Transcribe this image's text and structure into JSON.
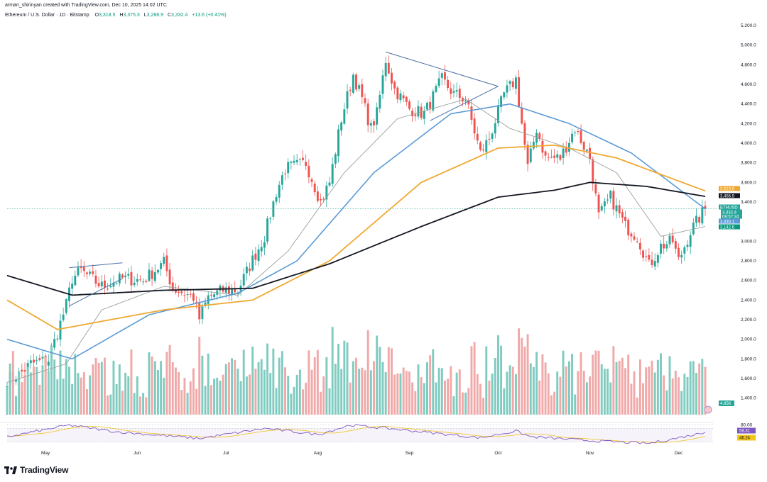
{
  "header": {
    "author": "arman_shirinyan created with TradingView.com, Dec 10, 2025 14:02 UTC",
    "symbol": "Ethereum / U.S. Dollar · 1D · Bitstamp",
    "open_label": "O",
    "open": "3,318.5",
    "high_label": "H",
    "high": "3,375.3",
    "low_label": "L",
    "low": "3,288.9",
    "close_label": "C",
    "close": "3,332.4",
    "change": "+13.6 (+0.41%)"
  },
  "footer": {
    "brand": "TradingView"
  },
  "colors": {
    "up": "#26a69a",
    "down": "#ef5350",
    "vol_up": "#7fcbc0",
    "vol_down": "#f1a8a8",
    "sma20": "#9aa19c",
    "sma50": "#5b9bd5",
    "sma100": "#f0a830",
    "sma200": "#131722",
    "rsi": "#7e57c2",
    "trendline": "#4a6fa5"
  },
  "chart_data": {
    "type": "candlestick",
    "title": "Ethereum / U.S. Dollar · 1D · Bitstamp",
    "price_axis": {
      "ticks": [
        "5,200.0",
        "5,000.0",
        "4,800.0",
        "4,600.0",
        "4,400.0",
        "4,200.0",
        "4,000.0",
        "3,800.0",
        "3,600.0",
        "3,400.0",
        "3,000.0",
        "2,800.0",
        "2,600.0",
        "2,400.0",
        "2,200.0",
        "2,000.0",
        "1,800.0",
        "1,600.0",
        "1,400.0"
      ],
      "ylim": [
        1300,
        5250
      ]
    },
    "time_axis": {
      "labels": [
        "May",
        "Jun",
        "Jul",
        "Aug",
        "Sep",
        "Oct",
        "Nov",
        "Dec"
      ]
    },
    "price_anchors": [
      [
        "2025-04-18",
        1590
      ],
      [
        "2025-04-22",
        1640
      ],
      [
        "2025-04-26",
        1750
      ],
      [
        "2025-05-02",
        1790
      ],
      [
        "2025-05-08",
        2350
      ],
      [
        "2025-05-10",
        2620
      ],
      [
        "2025-05-13",
        2700
      ],
      [
        "2025-05-20",
        2540
      ],
      [
        "2025-05-27",
        2620
      ],
      [
        "2025-06-03",
        2600
      ],
      [
        "2025-06-10",
        2780
      ],
      [
        "2025-06-13",
        2520
      ],
      [
        "2025-06-20",
        2430
      ],
      [
        "2025-06-22",
        2210
      ],
      [
        "2025-06-25",
        2430
      ],
      [
        "2025-06-30",
        2500
      ],
      [
        "2025-07-05",
        2500
      ],
      [
        "2025-07-09",
        2750
      ],
      [
        "2025-07-14",
        3050
      ],
      [
        "2025-07-18",
        3500
      ],
      [
        "2025-07-21",
        3740
      ],
      [
        "2025-07-28",
        3800
      ],
      [
        "2025-08-02",
        3400
      ],
      [
        "2025-08-05",
        3600
      ],
      [
        "2025-08-09",
        4250
      ],
      [
        "2025-08-13",
        4700
      ],
      [
        "2025-08-16",
        4450
      ],
      [
        "2025-08-19",
        4150
      ],
      [
        "2025-08-21",
        4300
      ],
      [
        "2025-08-24",
        4850
      ],
      [
        "2025-08-27",
        4550
      ],
      [
        "2025-09-01",
        4350
      ],
      [
        "2025-09-06",
        4300
      ],
      [
        "2025-09-12",
        4650
      ],
      [
        "2025-09-16",
        4500
      ],
      [
        "2025-09-20",
        4450
      ],
      [
        "2025-09-25",
        3900
      ],
      [
        "2025-09-28",
        4050
      ],
      [
        "2025-10-03",
        4500
      ],
      [
        "2025-10-07",
        4650
      ],
      [
        "2025-10-11",
        3750
      ],
      [
        "2025-10-14",
        4150
      ],
      [
        "2025-10-17",
        3850
      ],
      [
        "2025-10-22",
        3850
      ],
      [
        "2025-10-27",
        4150
      ],
      [
        "2025-11-01",
        3850
      ],
      [
        "2025-11-04",
        3250
      ],
      [
        "2025-11-08",
        3450
      ],
      [
        "2025-11-13",
        3150
      ],
      [
        "2025-11-17",
        3050
      ],
      [
        "2025-11-21",
        2750
      ],
      [
        "2025-11-25",
        2950
      ],
      [
        "2025-11-29",
        3000
      ],
      [
        "2025-12-01",
        2800
      ],
      [
        "2025-12-05",
        3100
      ],
      [
        "2025-12-10",
        3332.4
      ]
    ],
    "sma20_anchors": [
      [
        "2025-04-18",
        1560
      ],
      [
        "2025-05-08",
        1750
      ],
      [
        "2025-05-20",
        2300
      ],
      [
        "2025-06-10",
        2540
      ],
      [
        "2025-07-05",
        2450
      ],
      [
        "2025-07-22",
        2900
      ],
      [
        "2025-08-10",
        3700
      ],
      [
        "2025-08-28",
        4250
      ],
      [
        "2025-09-20",
        4450
      ],
      [
        "2025-10-05",
        4150
      ],
      [
        "2025-10-25",
        3950
      ],
      [
        "2025-11-10",
        3700
      ],
      [
        "2025-11-25",
        3050
      ],
      [
        "2025-12-10",
        3150
      ]
    ],
    "sma50_anchors": [
      [
        "2025-04-18",
        2000
      ],
      [
        "2025-05-10",
        1800
      ],
      [
        "2025-06-05",
        2250
      ],
      [
        "2025-07-05",
        2470
      ],
      [
        "2025-07-25",
        2800
      ],
      [
        "2025-08-20",
        3700
      ],
      [
        "2025-09-15",
        4300
      ],
      [
        "2025-10-05",
        4400
      ],
      [
        "2025-10-25",
        4200
      ],
      [
        "2025-11-15",
        3900
      ],
      [
        "2025-12-10",
        3330
      ]
    ],
    "sma100_anchors": [
      [
        "2025-04-18",
        2400
      ],
      [
        "2025-05-05",
        2100
      ],
      [
        "2025-06-10",
        2300
      ],
      [
        "2025-07-10",
        2400
      ],
      [
        "2025-08-05",
        2800
      ],
      [
        "2025-09-05",
        3600
      ],
      [
        "2025-10-01",
        3950
      ],
      [
        "2025-10-20",
        3980
      ],
      [
        "2025-11-10",
        3850
      ],
      [
        "2025-12-10",
        3513
      ]
    ],
    "sma200_anchors": [
      [
        "2025-04-18",
        2650
      ],
      [
        "2025-05-10",
        2450
      ],
      [
        "2025-06-10",
        2500
      ],
      [
        "2025-07-10",
        2520
      ],
      [
        "2025-08-05",
        2770
      ],
      [
        "2025-09-05",
        3150
      ],
      [
        "2025-10-01",
        3450
      ],
      [
        "2025-10-20",
        3520
      ],
      [
        "2025-11-01",
        3600
      ],
      [
        "2025-11-20",
        3560
      ],
      [
        "2025-12-10",
        3457
      ]
    ],
    "rsi_anchors": [
      [
        "2025-04-18",
        45
      ],
      [
        "2025-05-09",
        80
      ],
      [
        "2025-05-25",
        60
      ],
      [
        "2025-06-22",
        40
      ],
      [
        "2025-07-14",
        70
      ],
      [
        "2025-08-01",
        52
      ],
      [
        "2025-08-12",
        80
      ],
      [
        "2025-08-25",
        70
      ],
      [
        "2025-09-25",
        42
      ],
      [
        "2025-10-07",
        62
      ],
      [
        "2025-10-12",
        45
      ],
      [
        "2025-11-04",
        32
      ],
      [
        "2025-11-21",
        25
      ],
      [
        "2025-12-01",
        42
      ],
      [
        "2025-12-10",
        58.31
      ]
    ],
    "rsi_ma_last": 46.24,
    "rsi_ticks": [
      "80.00"
    ],
    "price_labels": [
      {
        "text": "3,513.0",
        "value": 3513.0,
        "color": "#f0a830"
      },
      {
        "text": "3,456.9",
        "value": 3456.9,
        "color": "#131722"
      },
      {
        "text": "ETHUSD",
        "value": 3332.4,
        "color": "#26a69a"
      },
      {
        "text": "3,332.4",
        "value": 3332.4,
        "color": "#26a69a"
      },
      {
        "text": "09:57:34",
        "value": 3332.4,
        "color": "#26a69a"
      },
      {
        "text": "3,330.1",
        "value": 3330.1,
        "color": "#5b9bd5"
      },
      {
        "text": "3,142.6",
        "value": 3142.6,
        "color": "#089981"
      }
    ],
    "volume_label": "4.85K",
    "rsi_labels": [
      {
        "text": "58.31",
        "value": 58.31,
        "color": "#7e57c2"
      },
      {
        "text": "46.24",
        "value": 46.24,
        "color": "#f0c419"
      }
    ],
    "pattern_lines": [
      {
        "name": "may-upper",
        "p": [
          [
            "2025-05-09",
            2730
          ],
          [
            "2025-05-27",
            2780
          ]
        ]
      },
      {
        "name": "may-lower",
        "p": [
          [
            "2025-05-09",
            2340
          ],
          [
            "2025-05-27",
            2620
          ]
        ]
      },
      {
        "name": "aug-upper",
        "p": [
          [
            "2025-08-24",
            4930
          ],
          [
            "2025-10-01",
            4580
          ]
        ]
      },
      {
        "name": "aug-lower",
        "p": [
          [
            "2025-09-08",
            4230
          ],
          [
            "2025-10-01",
            4580
          ]
        ]
      }
    ]
  }
}
